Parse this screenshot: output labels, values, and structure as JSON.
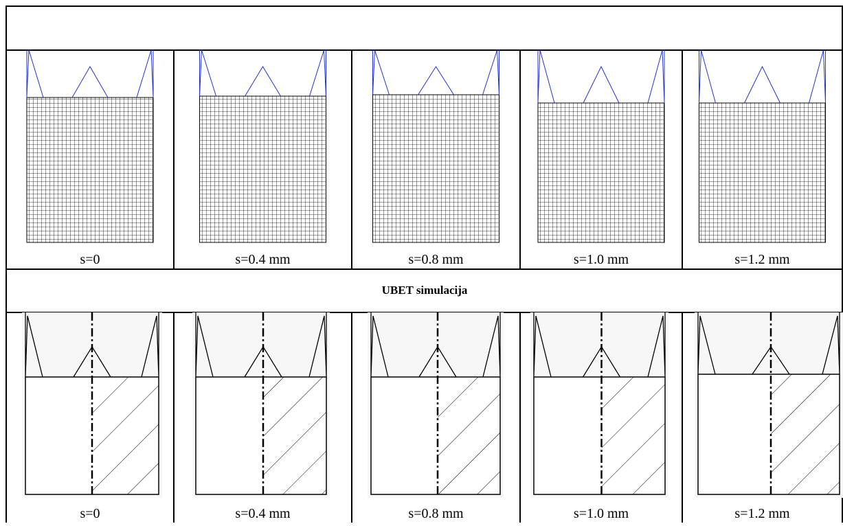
{
  "top_row": {
    "captions": [
      "s=0",
      "s=0.4 mm",
      "s=0.8 mm",
      "s=1.0 mm",
      "s=1.2 mm"
    ]
  },
  "section_title": "UBET simulacija",
  "bottom_row": {
    "captions": [
      "s=0",
      "s=0.4 mm",
      "s=0.8 mm",
      "s=1.0 mm",
      "s=1.2 mm"
    ]
  }
}
